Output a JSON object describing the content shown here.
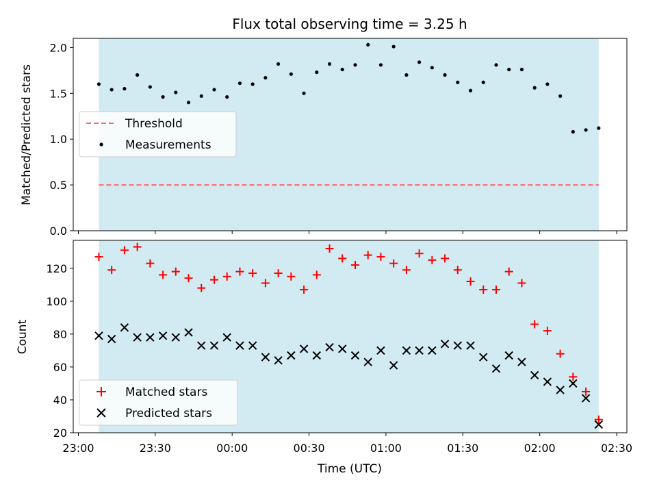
{
  "colors": {
    "band": "#add8e6",
    "threshold": "#ff6666",
    "matched": "#ff0000",
    "predicted": "#000000",
    "measurement": "#000000"
  },
  "chart_data": [
    {
      "type": "scatter",
      "title": "Flux total observing time = 3.25 h",
      "xlabel": "",
      "ylabel": "Matched/Predicted stars",
      "xlim": [
        "22:58",
        "02:34"
      ],
      "ylim": [
        0,
        2.1
      ],
      "yticks": [
        "0.0",
        "0.5",
        "1.0",
        "1.5",
        "2.0"
      ],
      "band": {
        "from": "23:08",
        "to": "02:23"
      },
      "threshold": {
        "name": "Threshold",
        "value": 0.5,
        "style": "dashed"
      },
      "legend": {
        "placement": "center-left",
        "entries": [
          "Threshold",
          "Measurements"
        ]
      },
      "series": [
        {
          "name": "Measurements",
          "x": [
            "23:08",
            "23:13",
            "23:18",
            "23:23",
            "23:28",
            "23:33",
            "23:38",
            "23:43",
            "23:48",
            "23:53",
            "23:58",
            "00:03",
            "00:08",
            "00:13",
            "00:18",
            "00:23",
            "00:28",
            "00:33",
            "00:38",
            "00:43",
            "00:48",
            "00:53",
            "00:58",
            "01:03",
            "01:08",
            "01:13",
            "01:18",
            "01:23",
            "01:28",
            "01:33",
            "01:38",
            "01:43",
            "01:48",
            "01:53",
            "01:58",
            "02:03",
            "02:08",
            "02:13",
            "02:18",
            "02:23"
          ],
          "y": [
            1.6,
            1.54,
            1.55,
            1.7,
            1.57,
            1.46,
            1.51,
            1.4,
            1.47,
            1.54,
            1.46,
            1.61,
            1.6,
            1.67,
            1.82,
            1.71,
            1.5,
            1.73,
            1.82,
            1.76,
            1.81,
            2.03,
            1.81,
            2.01,
            1.7,
            1.84,
            1.78,
            1.7,
            1.62,
            1.53,
            1.62,
            1.81,
            1.76,
            1.76,
            1.56,
            1.6,
            1.47,
            1.08,
            1.1,
            1.12
          ]
        }
      ]
    },
    {
      "type": "scatter",
      "title": "",
      "xlabel": "Time (UTC)",
      "ylabel": "Count",
      "xlim": [
        "22:58",
        "02:34"
      ],
      "xticks": [
        "23:00",
        "23:30",
        "00:00",
        "00:30",
        "01:00",
        "01:30",
        "02:00",
        "02:30"
      ],
      "ylim": [
        20,
        137
      ],
      "yticks": [
        "20",
        "40",
        "60",
        "80",
        "100",
        "120"
      ],
      "band": {
        "from": "23:08",
        "to": "02:23"
      },
      "legend": {
        "placement": "lower-left",
        "entries": [
          "Matched stars",
          "Predicted stars"
        ]
      },
      "series": [
        {
          "name": "Matched stars",
          "x": [
            "23:08",
            "23:13",
            "23:18",
            "23:23",
            "23:28",
            "23:33",
            "23:38",
            "23:43",
            "23:48",
            "23:53",
            "23:58",
            "00:03",
            "00:08",
            "00:13",
            "00:18",
            "00:23",
            "00:28",
            "00:33",
            "00:38",
            "00:43",
            "00:48",
            "00:53",
            "00:58",
            "01:03",
            "01:08",
            "01:13",
            "01:18",
            "01:23",
            "01:28",
            "01:33",
            "01:38",
            "01:43",
            "01:48",
            "01:53",
            "01:58",
            "02:03",
            "02:08",
            "02:13",
            "02:18",
            "02:23"
          ],
          "y": [
            127,
            119,
            131,
            133,
            123,
            116,
            118,
            114,
            108,
            113,
            115,
            118,
            117,
            111,
            117,
            115,
            107,
            116,
            132,
            126,
            122,
            128,
            127,
            123,
            119,
            129,
            125,
            126,
            119,
            112,
            107,
            107,
            118,
            111,
            86,
            82,
            68,
            54,
            45,
            28
          ]
        },
        {
          "name": "Predicted stars",
          "x": [
            "23:08",
            "23:13",
            "23:18",
            "23:23",
            "23:28",
            "23:33",
            "23:38",
            "23:43",
            "23:48",
            "23:53",
            "23:58",
            "00:03",
            "00:08",
            "00:13",
            "00:18",
            "00:23",
            "00:28",
            "00:33",
            "00:38",
            "00:43",
            "00:48",
            "00:53",
            "00:58",
            "01:03",
            "01:08",
            "01:13",
            "01:18",
            "01:23",
            "01:28",
            "01:33",
            "01:38",
            "01:43",
            "01:48",
            "01:53",
            "01:58",
            "02:03",
            "02:08",
            "02:13",
            "02:18",
            "02:23"
          ],
          "y": [
            79,
            77,
            84,
            78,
            78,
            79,
            78,
            81,
            73,
            73,
            78,
            73,
            73,
            66,
            64,
            67,
            71,
            67,
            72,
            71,
            67,
            63,
            70,
            61,
            70,
            70,
            70,
            74,
            73,
            73,
            66,
            59,
            67,
            63,
            55,
            51,
            46,
            50,
            41,
            25
          ]
        }
      ]
    }
  ]
}
